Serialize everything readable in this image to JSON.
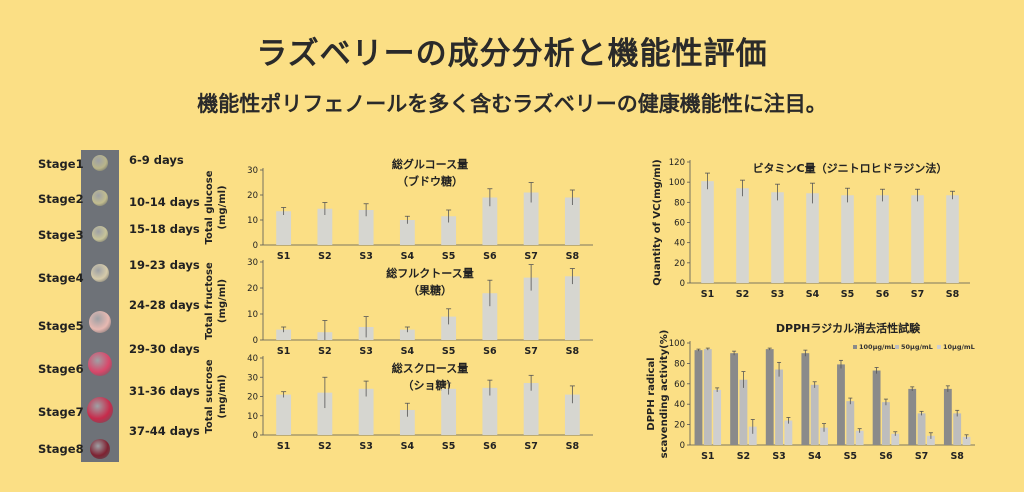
{
  "header": {
    "title": "ラズベリーの成分分析と機能性評価",
    "subtitle": "機能性ポリフェノールを多く含むラズベリーの健康機能性に注目。"
  },
  "stages": [
    {
      "label": "Stage1",
      "days": "6-9 days",
      "color": "#b9b58a"
    },
    {
      "label": "Stage2",
      "days": "10-14 days",
      "color": "#c2bd8f"
    },
    {
      "label": "Stage3",
      "days": "15-18 days",
      "color": "#c8c499"
    },
    {
      "label": "Stage4",
      "days": "19-23 days",
      "color": "#d6cbaa"
    },
    {
      "label": "Stage5",
      "days": "24-28 days",
      "color": "#e8b9b2"
    },
    {
      "label": "Stage6",
      "days": "29-30 days",
      "color": "#d9476a"
    },
    {
      "label": "Stage7",
      "days": "31-36 days",
      "color": "#c72b4b"
    },
    {
      "label": "Stage8",
      "days": "37-44 days",
      "color": "#7e2232"
    }
  ],
  "colors": {
    "background": "#fbdf85",
    "bar": "#d6d6d0",
    "axis": "#555555",
    "dark_series": "#8a8a8a",
    "mid_series": "#bdbdbd",
    "light_series": "#cfcfcf"
  },
  "chart_data": [
    {
      "type": "bar",
      "title_line1": "総グルコース量",
      "title_line2": "（ブドウ糖）",
      "ylabel_line1": "Total glucose",
      "ylabel_line2": "(mg/ml)",
      "categories": [
        "S1",
        "S2",
        "S3",
        "S4",
        "S5",
        "S6",
        "S7",
        "S8"
      ],
      "values": [
        13.5,
        14.5,
        14,
        10,
        11.5,
        19,
        21,
        19
      ],
      "errors": [
        1.5,
        2.5,
        2.5,
        1.5,
        2.5,
        3.5,
        4,
        3
      ],
      "ylim": [
        0,
        30
      ],
      "yticks": [
        0,
        10,
        20,
        30
      ]
    },
    {
      "type": "bar",
      "title_line1": "総フルクトース量",
      "title_line2": "（果糖）",
      "ylabel_line1": "Total fructose",
      "ylabel_line2": "(mg/ml)",
      "categories": [
        "S1",
        "S2",
        "S3",
        "S4",
        "S5",
        "S6",
        "S7",
        "S8"
      ],
      "values": [
        4,
        3,
        5,
        4,
        9,
        18,
        24,
        24.5
      ],
      "errors": [
        1,
        4.5,
        4,
        1,
        3,
        5,
        5,
        3
      ],
      "ylim": [
        0,
        30
      ],
      "yticks": [
        0,
        10,
        20,
        30
      ]
    },
    {
      "type": "bar",
      "title_line1": "総スクロース量",
      "title_line2": "（ショ糖）",
      "ylabel_line1": "Total sucrose",
      "ylabel_line2": "(mg/ml)",
      "categories": [
        "S1",
        "S2",
        "S3",
        "S4",
        "S5",
        "S6",
        "S7",
        "S8"
      ],
      "values": [
        21,
        22,
        24,
        13,
        24,
        24.5,
        27,
        21
      ],
      "errors": [
        1.5,
        8,
        4,
        3.5,
        3,
        4,
        4,
        4.5
      ],
      "ylim": [
        0,
        40
      ],
      "yticks": [
        0,
        10,
        20,
        30,
        40
      ]
    },
    {
      "type": "bar",
      "title_line1": "ビタミンC量（ジニトロヒドラジン法）",
      "title_line2": "",
      "ylabel_line1": "Quantity of VC(mg/ml)",
      "ylabel_line2": "",
      "categories": [
        "S1",
        "S2",
        "S3",
        "S4",
        "S5",
        "S6",
        "S7",
        "S8"
      ],
      "values": [
        101,
        94,
        90,
        89,
        87,
        87,
        87,
        87
      ],
      "errors": [
        8,
        8,
        8,
        10,
        7,
        6,
        6,
        4
      ],
      "ylim": [
        0,
        120
      ],
      "yticks": [
        0,
        20,
        40,
        60,
        80,
        100,
        120
      ]
    },
    {
      "type": "bar",
      "title_line1": "DPPHラジカル消去活性試験",
      "title_line2": "",
      "ylabel_line1": "DPPH radical",
      "ylabel_line2": "scavending activity(%)",
      "categories": [
        "S1",
        "S2",
        "S3",
        "S4",
        "S5",
        "S6",
        "S7",
        "S8"
      ],
      "series": [
        {
          "name": "100μg/mL",
          "values": [
            93,
            90,
            94,
            90,
            79,
            73,
            55,
            55
          ],
          "errors": [
            1,
            2,
            1,
            3,
            4,
            3,
            2,
            3
          ]
        },
        {
          "name": "50μg/mL",
          "values": [
            94,
            64,
            74,
            59,
            43,
            42,
            31,
            31
          ],
          "errors": [
            1,
            8,
            7,
            3,
            3,
            3,
            2,
            3
          ]
        },
        {
          "name": "10μg/mL",
          "values": [
            54,
            18,
            24,
            17,
            14,
            11,
            9,
            8
          ],
          "errors": [
            2,
            7,
            3,
            4,
            2,
            2,
            3,
            2
          ]
        }
      ],
      "ylim": [
        0,
        100
      ],
      "yticks": [
        0,
        20,
        40,
        60,
        80,
        100
      ],
      "legend": "top-right"
    }
  ]
}
